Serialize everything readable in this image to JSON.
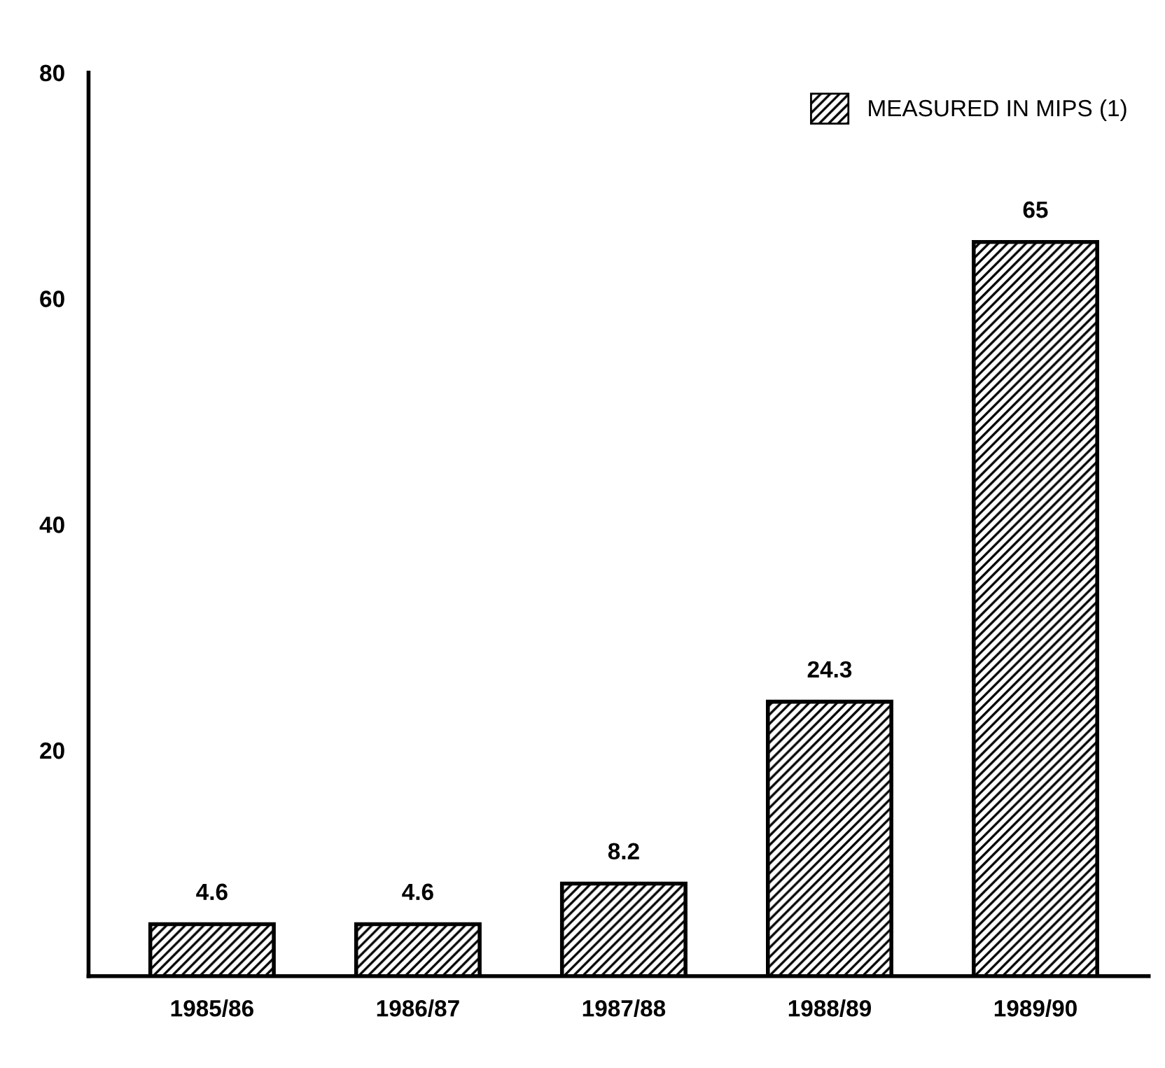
{
  "chart_data": {
    "type": "bar",
    "categories": [
      "1985/86",
      "1986/87",
      "1987/88",
      "1988/89",
      "1989/90"
    ],
    "series": [
      {
        "name": "MEASURED IN MIPS (1)",
        "color": "#000000",
        "values": [
          4.6,
          4.6,
          8.2,
          24.3,
          65
        ]
      }
    ],
    "ylim": [
      0,
      80
    ],
    "yticks": [
      20,
      40,
      60,
      80
    ],
    "data_labels": true,
    "legend": "top right",
    "grid": false
  }
}
